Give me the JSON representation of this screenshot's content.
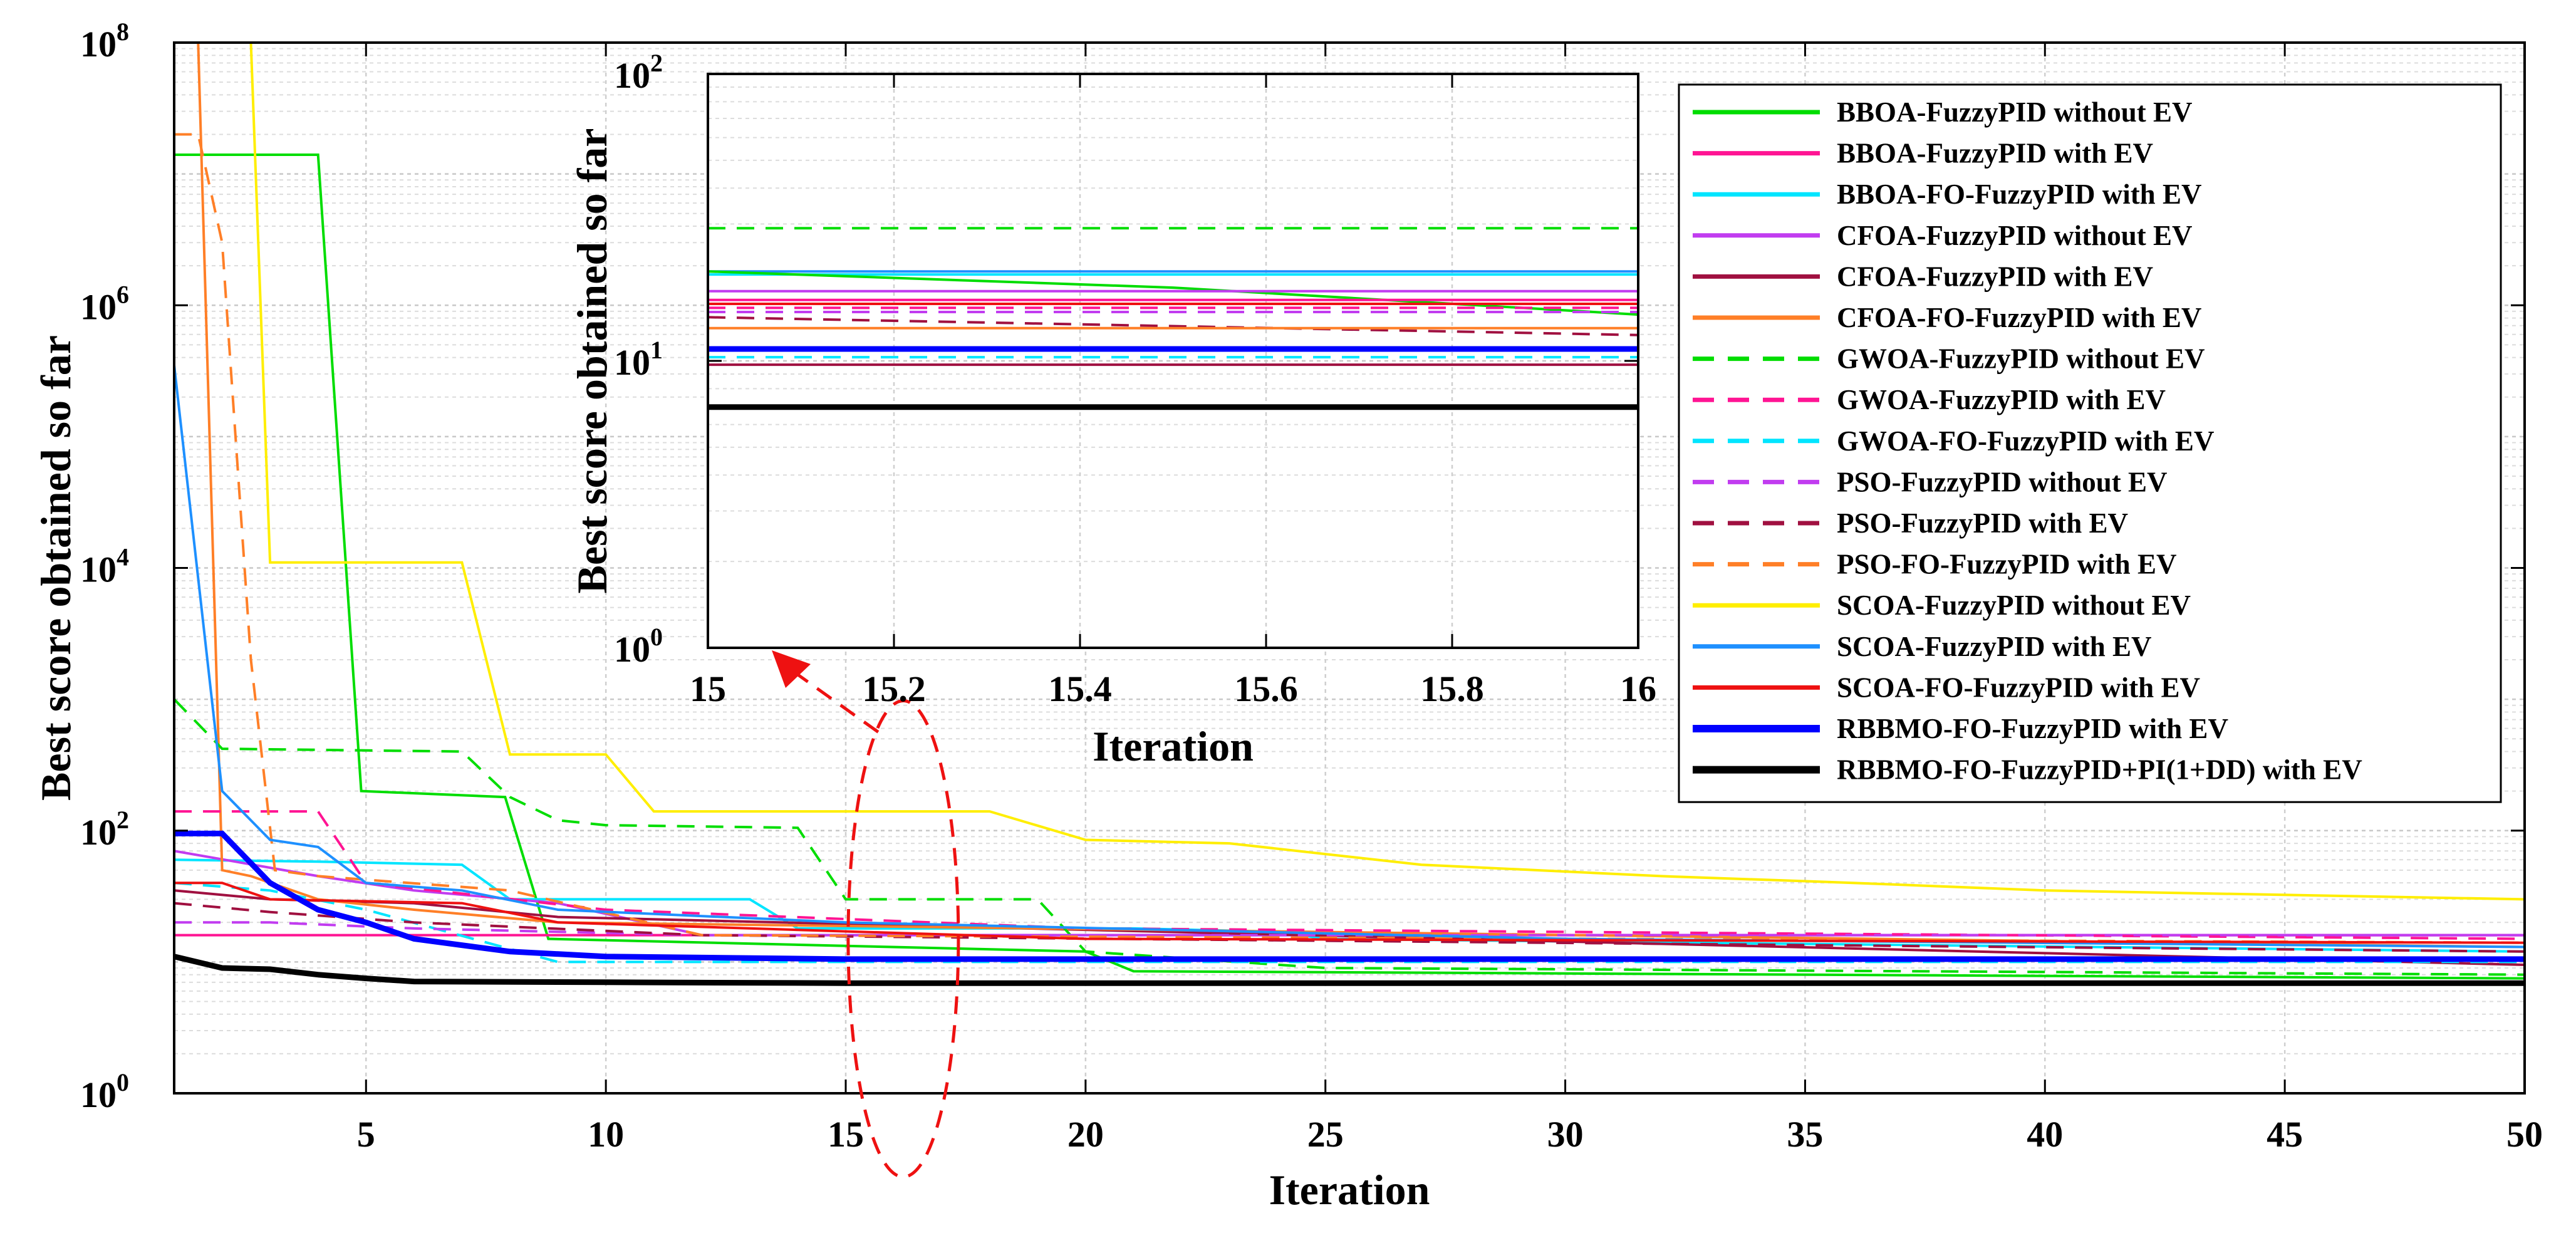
{
  "chart_data": [
    {
      "type": "line",
      "id": "main",
      "xlabel": "Iteration",
      "ylabel": "Best score obtained so far",
      "yscale": "log",
      "xlim": [
        1,
        50
      ],
      "ylim": [
        1,
        100000000
      ],
      "xticks": [
        5,
        10,
        15,
        20,
        25,
        30,
        35,
        40,
        45,
        50
      ],
      "ytick_base": "10",
      "ytick_exponents": [
        "0",
        "2",
        "4",
        "6",
        "8"
      ],
      "grid": true,
      "series": [
        {
          "name": "BBOA-FuzzyPID without EV",
          "color": "#00dd00",
          "dash": "solid",
          "width": 4,
          "x": [
            1,
            4,
            4.9,
            7.9,
            8.8,
            20,
            21,
            50
          ],
          "y": [
            14000000,
            14000000,
            200,
            180,
            15,
            12,
            8.5,
            7.5
          ]
        },
        {
          "name": "BBOA-FuzzyPID with EV",
          "color": "#ff1493",
          "dash": "solid",
          "width": 4,
          "x": [
            1,
            50
          ],
          "y": [
            16,
            16
          ]
        },
        {
          "name": "BBOA-FO-FuzzyPID with EV",
          "color": "#00e5ff",
          "dash": "solid",
          "width": 4,
          "x": [
            1,
            4,
            7,
            8,
            13,
            14,
            21,
            24,
            25,
            50
          ],
          "y": [
            60,
            58,
            55,
            30,
            30,
            18,
            18,
            17,
            15,
            12
          ]
        },
        {
          "name": "CFOA-FuzzyPID without EV",
          "color": "#c13cf0",
          "dash": "solid",
          "width": 4,
          "x": [
            1,
            4,
            6,
            9,
            12,
            50
          ],
          "y": [
            70,
            45,
            35,
            28,
            16,
            16
          ]
        },
        {
          "name": "CFOA-FuzzyPID with EV",
          "color": "#a01040",
          "dash": "solid",
          "width": 4,
          "x": [
            1,
            3,
            6,
            9,
            50
          ],
          "y": [
            35,
            30,
            28,
            22,
            9.5
          ]
        },
        {
          "name": "CFOA-FO-FuzzyPID with EV",
          "color": "#ff7f27",
          "dash": "solid",
          "width": 4,
          "x": [
            1,
            1.5,
            2,
            2.6,
            4,
            6,
            9,
            50
          ],
          "y": [
            100000000,
            100000000,
            50,
            45,
            30,
            25,
            20,
            13
          ]
        },
        {
          "name": "GWOA-FuzzyPID without EV",
          "color": "#00dd00",
          "dash": "dashed",
          "width": 4,
          "x": [
            1,
            2,
            7,
            8,
            9,
            10,
            14,
            15,
            19,
            20,
            25,
            50
          ],
          "y": [
            1000,
            420,
            400,
            180,
            120,
            110,
            105,
            30,
            30,
            12,
            9,
            8
          ]
        },
        {
          "name": "GWOA-FuzzyPID with EV",
          "color": "#ff1493",
          "dash": "dashed",
          "width": 4,
          "x": [
            1,
            4,
            5,
            10,
            20,
            50
          ],
          "y": [
            140,
            140,
            40,
            25,
            18,
            15
          ]
        },
        {
          "name": "GWOA-FO-FuzzyPID with EV",
          "color": "#00e5ff",
          "dash": "dashed",
          "width": 4,
          "x": [
            1,
            3,
            5,
            9,
            50
          ],
          "y": [
            40,
            35,
            25,
            10,
            10
          ]
        },
        {
          "name": "PSO-FuzzyPID without EV",
          "color": "#c13cf0",
          "dash": "dashed",
          "width": 4,
          "x": [
            1,
            3,
            6,
            12,
            50
          ],
          "y": [
            20,
            20,
            18,
            16,
            16
          ]
        },
        {
          "name": "PSO-FuzzyPID with EV",
          "color": "#a01040",
          "dash": "dashed",
          "width": 4,
          "x": [
            1,
            3,
            6,
            12,
            50
          ],
          "y": [
            28,
            24,
            20,
            16,
            12
          ]
        },
        {
          "name": "PSO-FO-FuzzyPID with EV",
          "color": "#ff7f27",
          "dash": "dashed",
          "width": 4,
          "x": [
            1,
            1.5,
            2,
            2.6,
            3.1,
            4,
            8,
            12,
            50
          ],
          "y": [
            20000000,
            20000000,
            3000000,
            2000,
            50,
            45,
            35,
            16,
            14
          ]
        },
        {
          "name": "SCOA-FuzzyPID without EV",
          "color": "#ffee00",
          "dash": "solid",
          "width": 4,
          "x": [
            1.5,
            2,
            2.6,
            3,
            7,
            8,
            10,
            11,
            18,
            20,
            23,
            27,
            32,
            36,
            40,
            50
          ],
          "y": [
            100000000,
            100000000,
            100000000,
            11000,
            11000,
            380,
            380,
            140,
            140,
            85,
            80,
            55,
            45,
            40,
            35,
            30
          ]
        },
        {
          "name": "SCOA-FuzzyPID with EV",
          "color": "#1e90ff",
          "dash": "solid",
          "width": 4,
          "x": [
            1,
            2,
            3,
            4,
            5,
            7,
            9,
            15,
            30,
            50
          ],
          "y": [
            350000,
            200,
            85,
            75,
            40,
            35,
            25,
            20,
            15,
            13
          ]
        },
        {
          "name": "SCOA-FO-FuzzyPID with EV",
          "color": "#ee1111",
          "dash": "solid",
          "width": 4,
          "x": [
            1,
            2,
            3,
            7,
            9,
            20,
            50
          ],
          "y": [
            40,
            40,
            30,
            28,
            20,
            15,
            14
          ]
        },
        {
          "name": "RBBMO-FO-FuzzyPID with EV",
          "color": "#0000ff",
          "dash": "solid",
          "width": 9,
          "x": [
            1,
            2,
            3,
            4,
            5,
            6,
            8,
            10,
            15,
            50
          ],
          "y": [
            95,
            95,
            40,
            25,
            20,
            15,
            12,
            11,
            10.5,
            10.5
          ]
        },
        {
          "name": "RBBMO-FO-FuzzyPID+PI(1+DD) with EV",
          "color": "#000000",
          "dash": "solid",
          "width": 9,
          "x": [
            1,
            2,
            3,
            4,
            5,
            6,
            10,
            15,
            50
          ],
          "y": [
            11,
            9,
            8.8,
            8,
            7.5,
            7.1,
            7,
            6.9,
            6.9
          ]
        }
      ]
    },
    {
      "type": "line",
      "id": "inset",
      "xlabel": "Iteration",
      "ylabel": "Best score obtained so far",
      "yscale": "log",
      "xlim": [
        15,
        16
      ],
      "ylim": [
        1,
        100
      ],
      "xticks": [
        "15",
        "15.2",
        "15.4",
        "15.6",
        "15.8",
        "16"
      ],
      "ytick_base": "10",
      "ytick_exponents": [
        "0",
        "1",
        "2"
      ],
      "grid": true,
      "series": [
        {
          "name": "GWOA-FuzzyPID without EV",
          "color": "#00dd00",
          "dash": "dashed",
          "width": 4,
          "x": [
            15,
            16
          ],
          "y": [
            29,
            29
          ]
        },
        {
          "name": "SCOA-FuzzyPID with EV",
          "color": "#1e90ff",
          "dash": "solid",
          "width": 4,
          "x": [
            15,
            16
          ],
          "y": [
            20.5,
            20.5
          ]
        },
        {
          "name": "BBOA-FO-FuzzyPID with EV",
          "color": "#00e5ff",
          "dash": "solid",
          "width": 4,
          "x": [
            15,
            16
          ],
          "y": [
            20,
            20
          ]
        },
        {
          "name": "BBOA-FuzzyPID without EV",
          "color": "#00dd00",
          "dash": "solid",
          "width": 4,
          "x": [
            15,
            15.5,
            16
          ],
          "y": [
            20.5,
            18,
            14.5
          ]
        },
        {
          "name": "CFOA-FuzzyPID without EV",
          "color": "#c13cf0",
          "dash": "solid",
          "width": 4,
          "x": [
            15,
            16
          ],
          "y": [
            17.5,
            17.5
          ]
        },
        {
          "name": "BBOA-FuzzyPID with EV",
          "color": "#ff1493",
          "dash": "solid",
          "width": 4,
          "x": [
            15,
            16
          ],
          "y": [
            16.3,
            16.3
          ]
        },
        {
          "name": "SCOA-FO-FuzzyPID with EV",
          "color": "#ee1111",
          "dash": "solid",
          "width": 4,
          "x": [
            15,
            16
          ],
          "y": [
            15.8,
            15.8
          ]
        },
        {
          "name": "GWOA-FuzzyPID with EV",
          "color": "#ff1493",
          "dash": "dashed",
          "width": 4,
          "x": [
            15,
            16
          ],
          "y": [
            15.3,
            15.3
          ]
        },
        {
          "name": "PSO-FuzzyPID without EV",
          "color": "#c13cf0",
          "dash": "dashed",
          "width": 4,
          "x": [
            15,
            16
          ],
          "y": [
            14.8,
            14.8
          ]
        },
        {
          "name": "PSO-FuzzyPID with EV",
          "color": "#a01040",
          "dash": "dashed",
          "width": 4,
          "x": [
            15,
            16
          ],
          "y": [
            14.2,
            12.3
          ]
        },
        {
          "name": "CFOA-FO-FuzzyPID with EV",
          "color": "#ff7f27",
          "dash": "solid",
          "width": 4,
          "x": [
            15,
            16
          ],
          "y": [
            13,
            13
          ]
        },
        {
          "name": "RBBMO-FO-FuzzyPID with EV",
          "color": "#0000ff",
          "dash": "solid",
          "width": 9,
          "x": [
            15,
            16
          ],
          "y": [
            11,
            11
          ]
        },
        {
          "name": "GWOA-FO-FuzzyPID with EV",
          "color": "#00e5ff",
          "dash": "dashed",
          "width": 4,
          "x": [
            15,
            16
          ],
          "y": [
            10.3,
            10.3
          ]
        },
        {
          "name": "CFOA-FuzzyPID with EV",
          "color": "#a01040",
          "dash": "solid",
          "width": 4,
          "x": [
            15,
            16
          ],
          "y": [
            9.7,
            9.7
          ]
        },
        {
          "name": "RBBMO-FO-FuzzyPID+PI(1+DD) with EV",
          "color": "#000000",
          "dash": "solid",
          "width": 9,
          "x": [
            15,
            16
          ],
          "y": [
            6.9,
            6.9
          ]
        }
      ]
    }
  ],
  "legend": {
    "placement": "top-right",
    "entries": [
      {
        "label": "BBOA-FuzzyPID without EV",
        "color": "#00dd00",
        "dash": "solid",
        "width": 4
      },
      {
        "label": "BBOA-FuzzyPID with EV",
        "color": "#ff1493",
        "dash": "solid",
        "width": 4
      },
      {
        "label": "BBOA-FO-FuzzyPID with EV",
        "color": "#00e5ff",
        "dash": "solid",
        "width": 4
      },
      {
        "label": "CFOA-FuzzyPID without EV",
        "color": "#c13cf0",
        "dash": "solid",
        "width": 4
      },
      {
        "label": "CFOA-FuzzyPID with EV",
        "color": "#a01040",
        "dash": "solid",
        "width": 4
      },
      {
        "label": "CFOA-FO-FuzzyPID with EV",
        "color": "#ff7f27",
        "dash": "solid",
        "width": 4
      },
      {
        "label": "GWOA-FuzzyPID without EV",
        "color": "#00dd00",
        "dash": "dashed",
        "width": 4
      },
      {
        "label": "GWOA-FuzzyPID with EV",
        "color": "#ff1493",
        "dash": "dashed",
        "width": 4
      },
      {
        "label": "GWOA-FO-FuzzyPID with EV",
        "color": "#00e5ff",
        "dash": "dashed",
        "width": 4
      },
      {
        "label": "PSO-FuzzyPID without EV",
        "color": "#c13cf0",
        "dash": "dashed",
        "width": 4
      },
      {
        "label": "PSO-FuzzyPID with EV",
        "color": "#a01040",
        "dash": "dashed",
        "width": 4
      },
      {
        "label": "PSO-FO-FuzzyPID with EV",
        "color": "#ff7f27",
        "dash": "dashed",
        "width": 4
      },
      {
        "label": "SCOA-FuzzyPID without EV",
        "color": "#ffee00",
        "dash": "solid",
        "width": 4
      },
      {
        "label": "SCOA-FuzzyPID with EV",
        "color": "#1e90ff",
        "dash": "solid",
        "width": 4
      },
      {
        "label": "SCOA-FO-FuzzyPID with EV",
        "color": "#ee1111",
        "dash": "solid",
        "width": 4
      },
      {
        "label": "RBBMO-FO-FuzzyPID with EV",
        "color": "#0000ff",
        "dash": "solid",
        "width": 9
      },
      {
        "label": "RBBMO-FO-FuzzyPID+PI(1+DD) with EV",
        "color": "#000000",
        "dash": "solid",
        "width": 9
      }
    ]
  },
  "annotation": {
    "shape": "dashed ellipse with arrow",
    "color": "#ee1111",
    "center_iteration": 16.2,
    "center_value": 15
  }
}
